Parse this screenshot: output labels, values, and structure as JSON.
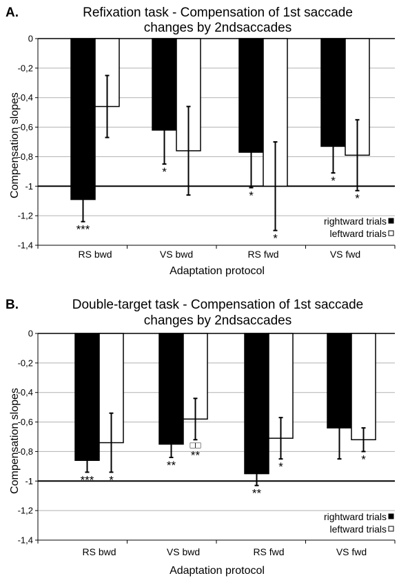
{
  "chart_data": [
    {
      "type": "bar",
      "panel_letter": "A.",
      "title_line1": "Refixation task - Compensation of 1st saccade",
      "title_line2": "changes by 2ndsaccades",
      "xlabel": "Adaptation protocol",
      "ylabel": "Compensation slopes",
      "ylim": [
        -1.4,
        0
      ],
      "yticks": [
        "0",
        "-0,2",
        "-0,4",
        "-0,6",
        "-0,8",
        "-1",
        "-1,2",
        "-1,4"
      ],
      "ytick_values": [
        0,
        -0.2,
        -0.4,
        -0.6,
        -0.8,
        -1,
        -1.2,
        -1.4
      ],
      "reference_line": -1,
      "grid": true,
      "legend_position": "bottom-right",
      "categories": [
        "RS bwd",
        "VS bwd",
        "RS fwd",
        "VS fwd"
      ],
      "series": [
        {
          "name": "rightward trials",
          "color": "#000000",
          "values": [
            -1.09,
            -0.62,
            -0.77,
            -0.73
          ],
          "error": [
            0.15,
            0.23,
            0.24,
            0.18
          ],
          "sig": [
            "***",
            "*",
            "*",
            "*"
          ]
        },
        {
          "name": "leftward trials",
          "color": "#ffffff",
          "values": [
            -0.46,
            -0.76,
            -1.0,
            -0.79
          ],
          "error": [
            0.21,
            0.3,
            0.3,
            0.24
          ],
          "sig": [
            "",
            "",
            "*",
            "*"
          ]
        }
      ]
    },
    {
      "type": "bar",
      "panel_letter": "B.",
      "title_line1": "Double-target task - Compensation of 1st saccade",
      "title_line2": "changes by 2ndsaccades",
      "xlabel": "Adaptation protocol",
      "ylabel": "Compensation slopes",
      "ylim": [
        -1.4,
        0
      ],
      "yticks": [
        "0",
        "-0,2",
        "-0,4",
        "-0,6",
        "-0,8",
        "-1",
        "-1,2",
        "-1,4"
      ],
      "ytick_values": [
        0,
        -0.2,
        -0.4,
        -0.6,
        -0.8,
        -1,
        -1.2,
        -1.4
      ],
      "reference_line": -1,
      "grid": true,
      "legend_position": "bottom-right",
      "categories": [
        "RS bwd",
        "VS bwd",
        "RS fwd",
        "VS fwd"
      ],
      "series": [
        {
          "name": "rightward trials",
          "color": "#000000",
          "values": [
            -0.86,
            -0.75,
            -0.95,
            -0.64
          ],
          "error": [
            0.08,
            0.09,
            0.08,
            0.21
          ],
          "sig": [
            "***",
            "**",
            "**",
            ""
          ]
        },
        {
          "name": "leftward trials",
          "color": "#ffffff",
          "values": [
            -0.74,
            -0.58,
            -0.71,
            -0.72
          ],
          "error": [
            0.2,
            0.14,
            0.14,
            0.08
          ],
          "sig": [
            "*",
            "**",
            "*",
            "*"
          ],
          "sig_extra": [
            "",
            "□□",
            "",
            ""
          ]
        }
      ]
    }
  ]
}
